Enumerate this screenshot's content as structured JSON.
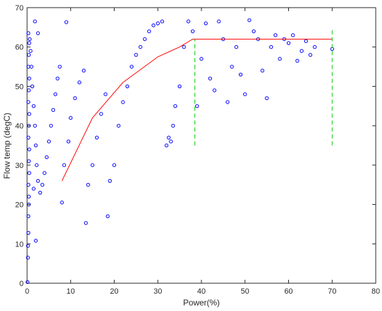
{
  "chart_data": {
    "type": "scatter",
    "title": "",
    "xlabel": "Power(%)",
    "ylabel": "Flow temp (degC)",
    "xlim": [
      0,
      80
    ],
    "ylim": [
      0,
      70
    ],
    "xticks": [
      0,
      10,
      20,
      30,
      40,
      50,
      60,
      70,
      80
    ],
    "yticks": [
      0,
      10,
      20,
      30,
      40,
      50,
      60,
      70
    ],
    "grid": false,
    "colors": {
      "points": "#0000ff",
      "curve": "#ff0000",
      "dashed": "#00cc00"
    },
    "series": [
      {
        "kind": "points",
        "values": [
          [
            0.1,
            0.3
          ],
          [
            0.2,
            6.5
          ],
          [
            0.2,
            9.5
          ],
          [
            0.3,
            12.8
          ],
          [
            0.3,
            17.0
          ],
          [
            0.4,
            20.0
          ],
          [
            0.4,
            22.0
          ],
          [
            0.3,
            25.0
          ],
          [
            0.5,
            28.0
          ],
          [
            0.4,
            31.0
          ],
          [
            0.5,
            34.0
          ],
          [
            0.3,
            37.0
          ],
          [
            0.4,
            40.0
          ],
          [
            0.5,
            43.0
          ],
          [
            0.3,
            46.0
          ],
          [
            0.4,
            49.0
          ],
          [
            0.5,
            52.0
          ],
          [
            0.3,
            55.0
          ],
          [
            0.4,
            58.0
          ],
          [
            0.5,
            61.0
          ],
          [
            0.3,
            63.5
          ],
          [
            0.6,
            62.0
          ],
          [
            0.8,
            59.0
          ],
          [
            1.0,
            55.0
          ],
          [
            1.2,
            50.0
          ],
          [
            1.5,
            45.0
          ],
          [
            1.8,
            40.0
          ],
          [
            2.0,
            35.0
          ],
          [
            2.2,
            30.0
          ],
          [
            2.5,
            26.0
          ],
          [
            1.5,
            24.0
          ],
          [
            3.0,
            23.0
          ],
          [
            3.5,
            25.0
          ],
          [
            4.0,
            28.0
          ],
          [
            4.5,
            32.0
          ],
          [
            5.0,
            36.0
          ],
          [
            5.5,
            40.0
          ],
          [
            6.0,
            44.0
          ],
          [
            6.5,
            48.0
          ],
          [
            7.0,
            52.0
          ],
          [
            7.5,
            55.0
          ],
          [
            2.0,
            10.8
          ],
          [
            1.8,
            66.5
          ],
          [
            2.5,
            63.5
          ],
          [
            9.0,
            66.3
          ],
          [
            8.0,
            20.5
          ],
          [
            8.5,
            30.0
          ],
          [
            9.5,
            36.0
          ],
          [
            10.0,
            42.0
          ],
          [
            11.0,
            47.0
          ],
          [
            12.0,
            51.0
          ],
          [
            13.0,
            54.0
          ],
          [
            13.5,
            15.3
          ],
          [
            14.0,
            25.0
          ],
          [
            15.0,
            30.0
          ],
          [
            16.0,
            37.0
          ],
          [
            17.0,
            43.0
          ],
          [
            18.0,
            48.0
          ],
          [
            18.5,
            17.0
          ],
          [
            19.0,
            26.0
          ],
          [
            20.0,
            30.0
          ],
          [
            21.0,
            40.0
          ],
          [
            22.0,
            46.0
          ],
          [
            23.0,
            50.0
          ],
          [
            24.0,
            55.0
          ],
          [
            25.0,
            58.0
          ],
          [
            26.0,
            60.0
          ],
          [
            27.0,
            62.0
          ],
          [
            28.0,
            64.0
          ],
          [
            29.0,
            65.5
          ],
          [
            30.0,
            66.0
          ],
          [
            31.0,
            66.5
          ],
          [
            32.0,
            35.0
          ],
          [
            32.5,
            37.0
          ],
          [
            33.0,
            36.0
          ],
          [
            33.5,
            40.0
          ],
          [
            34.0,
            45.0
          ],
          [
            35.0,
            50.0
          ],
          [
            36.0,
            60.0
          ],
          [
            37.0,
            66.5
          ],
          [
            38.0,
            64.0
          ],
          [
            39.0,
            45.0
          ],
          [
            40.0,
            57.0
          ],
          [
            41.0,
            66.0
          ],
          [
            42.0,
            52.0
          ],
          [
            43.0,
            49.0
          ],
          [
            44.0,
            66.5
          ],
          [
            45.0,
            62.0
          ],
          [
            46.0,
            46.0
          ],
          [
            47.0,
            55.0
          ],
          [
            48.0,
            60.0
          ],
          [
            49.0,
            53.0
          ],
          [
            50.0,
            48.0
          ],
          [
            51.0,
            66.8
          ],
          [
            52.0,
            64.0
          ],
          [
            53.0,
            62.0
          ],
          [
            54.0,
            54.0
          ],
          [
            55.0,
            47.0
          ],
          [
            56.0,
            60.0
          ],
          [
            57.0,
            63.0
          ],
          [
            58.0,
            57.0
          ],
          [
            59.0,
            62.0
          ],
          [
            60.0,
            61.0
          ],
          [
            61.0,
            63.0
          ],
          [
            62.0,
            56.5
          ],
          [
            63.0,
            59.0
          ],
          [
            64.0,
            61.5
          ],
          [
            65.0,
            58.0
          ],
          [
            66.0,
            60.0
          ],
          [
            70.0,
            59.5
          ]
        ]
      },
      {
        "kind": "line",
        "values": [
          [
            8.0,
            26.0
          ],
          [
            15.0,
            42.0
          ],
          [
            22.0,
            51.0
          ],
          [
            30.0,
            57.5
          ],
          [
            35.0,
            60.0
          ],
          [
            38.0,
            62.0
          ],
          [
            70.0,
            62.0
          ]
        ]
      },
      {
        "kind": "dashed",
        "values": [
          [
            38.5,
            35.0
          ],
          [
            38.5,
            62.0
          ]
        ]
      },
      {
        "kind": "dashed",
        "values": [
          [
            70.0,
            35.0
          ],
          [
            70.0,
            65.0
          ]
        ]
      }
    ]
  }
}
